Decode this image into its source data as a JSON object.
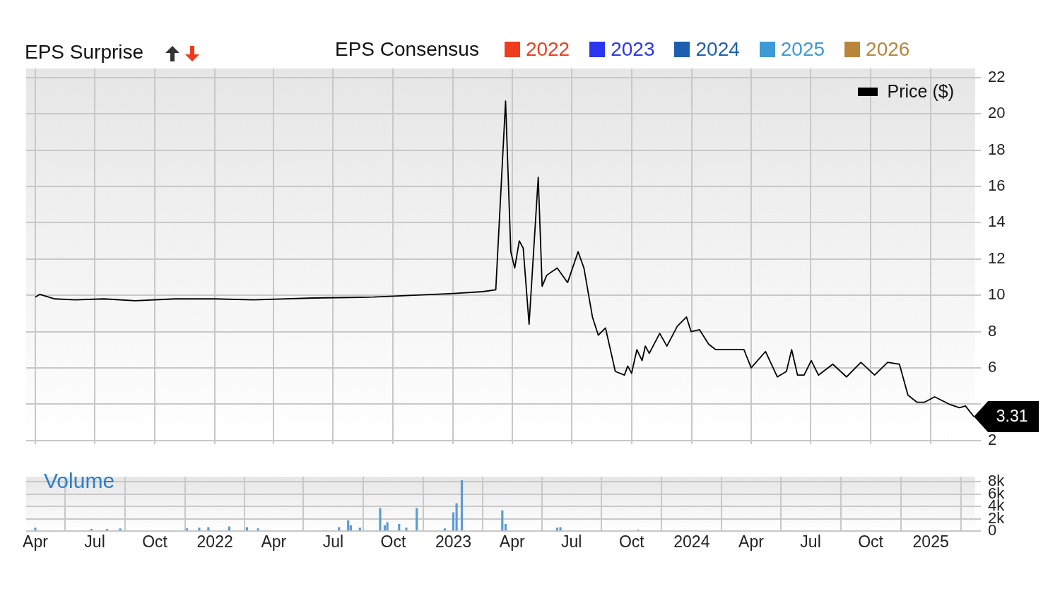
{
  "chart_data": [
    {
      "type": "line",
      "annotations": [
        "EPS Surprise",
        {
          "text": "3.31",
          "x": "2025-03-08",
          "y": 3.31
        }
      ],
      "legend_title": "EPS Consensus",
      "legend": "top right",
      "grid": true,
      "tick_labels": "y",
      "xlim": [
        "2021-03-18",
        "2025-03-10"
      ],
      "xticks": [
        {
          "value": "2021-04-01",
          "label": null
        },
        {
          "value": "2021-07-01",
          "label": null
        },
        {
          "value": "2021-10-01",
          "label": null
        },
        {
          "value": "2022-01-01",
          "label": null
        },
        {
          "value": "2022-04-01",
          "label": null
        },
        {
          "value": "2022-07-01",
          "label": null
        },
        {
          "value": "2022-10-01",
          "label": null
        },
        {
          "value": "2023-01-01",
          "label": null
        },
        {
          "value": "2023-04-01",
          "label": null
        },
        {
          "value": "2023-07-01",
          "label": null
        },
        {
          "value": "2023-10-01",
          "label": null
        },
        {
          "value": "2024-01-01",
          "label": null
        },
        {
          "value": "2024-04-01",
          "label": null
        },
        {
          "value": "2024-07-01",
          "label": null
        },
        {
          "value": "2024-10-01",
          "label": null
        },
        {
          "value": "2025-01-01",
          "label": null
        }
      ],
      "ylim": [
        1.8,
        22.5
      ],
      "yticks": [
        2,
        {
          "value": 4,
          "label": null
        },
        6,
        8,
        10,
        12,
        14,
        16,
        18,
        20,
        22
      ],
      "series": [
        {
          "name": "Price ($)",
          "color": "#000000",
          "x": [
            "2021-04-01",
            "2021-04-08",
            "2021-05-01",
            "2021-06-01",
            "2021-07-15",
            "2021-09-01",
            "2021-11-01",
            "2022-01-01",
            "2022-03-01",
            "2022-06-01",
            "2022-09-01",
            "2022-11-01",
            "2023-01-01",
            "2023-02-15",
            "2023-03-07",
            "2023-03-22",
            "2023-03-30",
            "2023-04-05",
            "2023-04-12",
            "2023-04-18",
            "2023-04-27",
            "2023-05-11",
            "2023-05-17",
            "2023-05-24",
            "2023-06-09",
            "2023-06-25",
            "2023-07-11",
            "2023-07-20",
            "2023-08-02",
            "2023-08-11",
            "2023-08-22",
            "2023-09-06",
            "2023-09-20",
            "2023-09-25",
            "2023-10-01",
            "2023-10-09",
            "2023-10-17",
            "2023-10-22",
            "2023-10-28",
            "2023-11-13",
            "2023-11-24",
            "2023-12-10",
            "2023-12-24",
            "2023-12-31",
            "2024-01-13",
            "2024-01-27",
            "2024-02-07",
            "2024-03-21",
            "2024-04-01",
            "2024-04-23",
            "2024-05-11",
            "2024-05-25",
            "2024-06-02",
            "2024-06-11",
            "2024-06-21",
            "2024-07-02",
            "2024-07-13",
            "2024-08-04",
            "2024-08-25",
            "2024-09-16",
            "2024-10-07",
            "2024-10-27",
            "2024-11-14",
            "2024-11-27",
            "2024-12-11",
            "2024-12-22",
            "2025-01-07",
            "2025-01-29",
            "2025-02-14",
            "2025-02-23",
            "2025-03-08"
          ],
          "values": [
            9.9,
            10.05,
            9.8,
            9.75,
            9.8,
            9.7,
            9.8,
            9.8,
            9.75,
            9.85,
            9.9,
            10.0,
            10.1,
            10.2,
            10.3,
            20.7,
            12.4,
            11.5,
            13.0,
            12.6,
            8.4,
            16.5,
            10.5,
            11.1,
            11.5,
            10.7,
            12.4,
            11.5,
            8.8,
            7.8,
            8.2,
            5.8,
            5.6,
            6.1,
            5.7,
            7.0,
            6.4,
            7.2,
            6.8,
            7.9,
            7.2,
            8.3,
            8.8,
            8.0,
            8.1,
            7.3,
            7.0,
            7.0,
            6.0,
            6.9,
            5.5,
            5.8,
            7.0,
            5.6,
            5.6,
            6.4,
            5.6,
            6.2,
            5.5,
            6.3,
            5.6,
            6.3,
            6.2,
            4.5,
            4.1,
            4.1,
            4.4,
            4.0,
            3.8,
            3.9,
            3.31
          ]
        },
        {
          "name": "2022",
          "color": "#f03c1e"
        },
        {
          "name": "2023",
          "color": "#2b35f0"
        },
        {
          "name": "2024",
          "color": "#1c5fb0"
        },
        {
          "name": "2025",
          "color": "#3d9ad6"
        },
        {
          "name": "2026",
          "color": "#b8863b"
        }
      ]
    },
    {
      "type": "bar",
      "annotations": [
        "Volume"
      ],
      "grid": true,
      "xlim": [
        "2021-03-18",
        "2025-03-10"
      ],
      "xticks": [
        {
          "value": "2021-04-01",
          "label": "Apr"
        },
        {
          "value": "2021-07-01",
          "label": "Jul"
        },
        {
          "value": "2021-10-01",
          "label": "Oct"
        },
        {
          "value": "2022-01-01",
          "label": "2022"
        },
        {
          "value": "2022-04-01",
          "label": "Apr"
        },
        {
          "value": "2022-07-01",
          "label": "Jul"
        },
        {
          "value": "2022-10-01",
          "label": "Oct"
        },
        {
          "value": "2023-01-01",
          "label": "2023"
        },
        {
          "value": "2023-04-01",
          "label": "Apr"
        },
        {
          "value": "2023-07-01",
          "label": "Jul"
        },
        {
          "value": "2023-10-01",
          "label": "Oct"
        },
        {
          "value": "2024-01-01",
          "label": "2024"
        },
        {
          "value": "2024-04-01",
          "label": "Apr"
        },
        {
          "value": "2024-07-01",
          "label": "Jul"
        },
        {
          "value": "2024-10-01",
          "label": "Oct"
        },
        {
          "value": "2025-01-01",
          "label": "2025"
        }
      ],
      "ylim": [
        0,
        8800
      ],
      "yticks": [
        0,
        {
          "value": 2000,
          "label": "2k"
        },
        {
          "value": 4000,
          "label": "4k"
        },
        {
          "value": 6000,
          "label": "6k"
        },
        {
          "value": 8000,
          "label": "8k"
        }
      ],
      "series": [
        {
          "color": "#5b9bd5",
          "x": [
            "2021-04-01",
            "2021-06-26",
            "2021-07-20",
            "2021-08-09",
            "2021-11-19",
            "2021-12-08",
            "2021-12-22",
            "2022-01-23",
            "2022-02-19",
            "2022-03-08",
            "2022-07-10",
            "2022-07-24",
            "2022-07-28",
            "2022-08-11",
            "2022-09-11",
            "2022-09-18",
            "2022-09-22",
            "2022-10-10",
            "2022-10-21",
            "2022-11-06",
            "2022-12-19",
            "2023-01-01",
            "2023-01-06",
            "2023-01-14",
            "2023-03-17",
            "2023-03-22",
            "2023-06-09",
            "2023-06-14",
            "2023-10-11"
          ],
          "values": [
            500,
            300,
            300,
            400,
            400,
            500,
            600,
            700,
            600,
            400,
            600,
            1700,
            900,
            500,
            3700,
            900,
            1400,
            1100,
            500,
            3700,
            400,
            3000,
            4500,
            8200,
            3300,
            1100,
            500,
            600,
            200
          ]
        }
      ]
    }
  ]
}
